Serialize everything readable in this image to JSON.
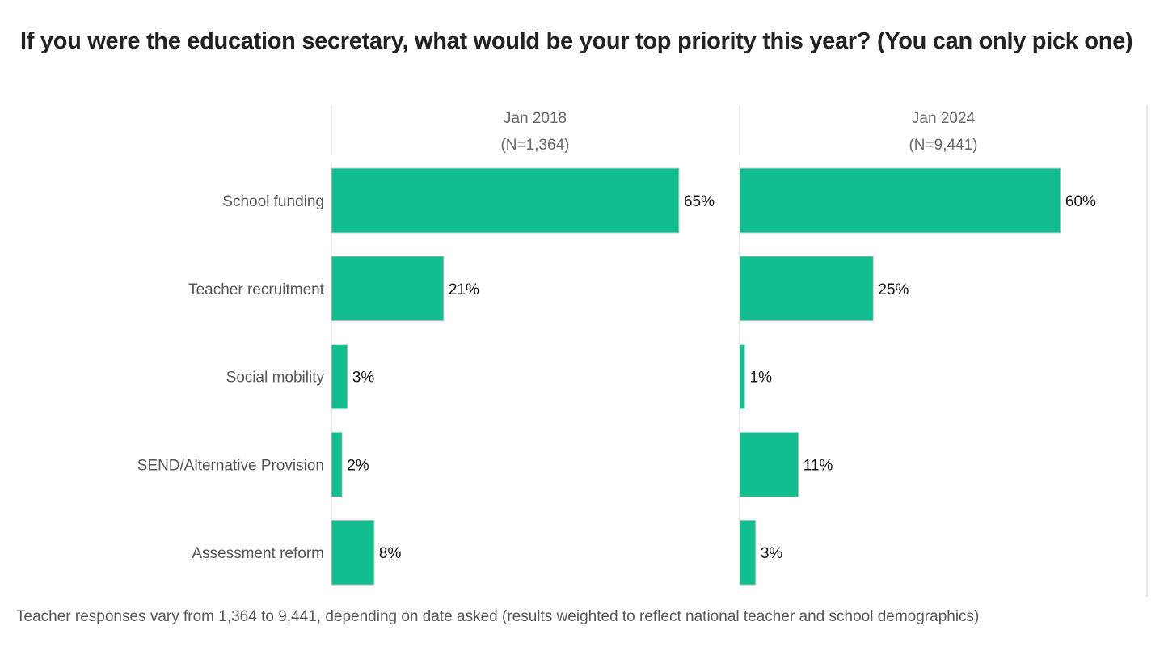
{
  "chart_data": {
    "type": "bar",
    "orientation": "horizontal",
    "title": "If you were the education secretary, what would be your top priority this year? (You can only pick one)",
    "categories": [
      "School funding",
      "Teacher recruitment",
      "Social mobility",
      "SEND/Alternative Provision",
      "Assessment reform"
    ],
    "panels": [
      {
        "label": "Jan 2018",
        "sublabel": "(N=1,364)",
        "values": [
          65,
          21,
          3,
          2,
          8
        ]
      },
      {
        "label": "Jan 2024",
        "sublabel": "(N=9,441)",
        "values": [
          60,
          25,
          1,
          11,
          3
        ]
      }
    ],
    "value_format": "%",
    "xlim": [
      0,
      76
    ],
    "grid": false,
    "bar_color": "#12be8f",
    "footnote": "Teacher responses vary from 1,364 to 9,441, depending on date asked (results weighted to reflect national teacher and school demographics)"
  }
}
